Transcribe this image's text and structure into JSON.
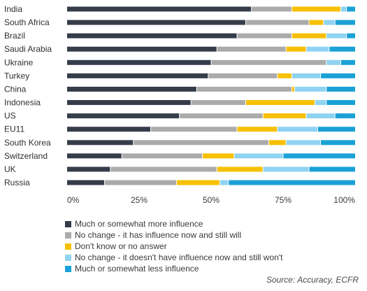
{
  "chart_data": {
    "type": "bar",
    "orientation": "horizontal",
    "stacked": true,
    "categories": [
      "India",
      "South Africa",
      "Brazil",
      "Saudi Arabia",
      "Ukraine",
      "Turkey",
      "China",
      "Indonesia",
      "US",
      "EU11",
      "South Korea",
      "Switzerland",
      "UK",
      "Russia"
    ],
    "series": [
      {
        "name": "Much or somewhat more influence",
        "color": "#353c4a",
        "values": [
          64,
          62,
          59,
          52,
          50,
          49,
          45,
          43,
          39,
          29,
          23,
          19,
          15,
          13
        ]
      },
      {
        "name": "No change - it has influence now and still will",
        "color": "#ababab",
        "values": [
          14,
          22,
          19,
          24,
          40,
          24,
          33,
          19,
          29,
          30,
          47,
          28,
          37,
          25
        ]
      },
      {
        "name": "Don't know or no answer",
        "color": "#f7c000",
        "values": [
          17,
          5,
          12,
          7,
          0,
          5,
          1,
          24,
          15,
          14,
          6,
          11,
          16,
          15
        ]
      },
      {
        "name": "No change - it doesn't have influence now and still won't",
        "color": "#8fd3f2",
        "values": [
          2,
          4,
          7,
          8,
          5,
          10,
          11,
          4,
          10,
          14,
          12,
          17,
          16,
          3
        ]
      },
      {
        "name": "Much or somewhat less influence",
        "color": "#1aa1d6",
        "values": [
          3,
          7,
          3,
          9,
          5,
          12,
          10,
          10,
          7,
          13,
          12,
          25,
          16,
          44
        ]
      }
    ],
    "xticks": [
      "0%",
      "25%",
      "50%",
      "75%",
      "100%"
    ],
    "xlim": [
      0,
      100
    ],
    "legend_position": "bottom",
    "grid": false
  },
  "source": "Source: Accuracy, ECFR"
}
